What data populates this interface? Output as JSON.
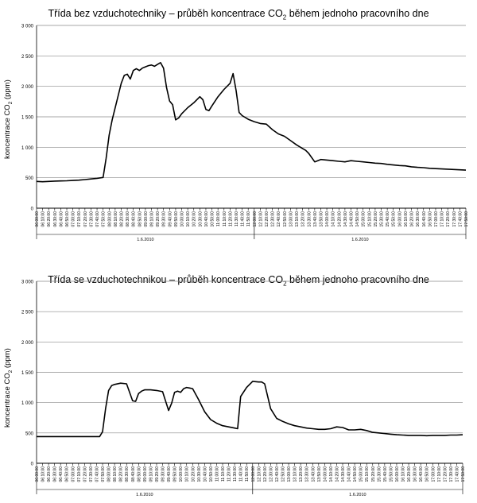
{
  "chart_data": [
    {
      "type": "line",
      "title_main": "Třída bez vzduchotechniky – průběh koncentrace CO",
      "title_sub": "2",
      "title_rest": " během jednoho pracovního dne",
      "ylabel_main": "koncentrace CO",
      "ylabel_sub": "2",
      "ylabel_rest": " (ppm)",
      "ylim": [
        0,
        3000
      ],
      "yticks": [
        "0",
        "500",
        "1 000",
        "1 500",
        "2 000",
        "2 500",
        "3 000"
      ],
      "grid": true,
      "xlim": [
        "06:00:00",
        "17:50:00"
      ],
      "xticks": [
        "06:00:00",
        "06:10:00",
        "06:20:00",
        "06:30:00",
        "06:40:00",
        "06:50:00",
        "07:00:00",
        "07:10:00",
        "07:20:00",
        "07:30:00",
        "07:40:00",
        "07:50:00",
        "08:00:00",
        "08:10:00",
        "08:20:00",
        "08:30:00",
        "08:40:00",
        "08:50:00",
        "09:00:00",
        "09:10:00",
        "09:20:00",
        "09:30:00",
        "09:40:00",
        "09:50:00",
        "10:00:00",
        "10:10:00",
        "10:20:00",
        "10:30:00",
        "10:40:00",
        "10:50:00",
        "11:00:00",
        "11:10:00",
        "11:20:00",
        "11:30:00",
        "11:40:00",
        "11:50:00",
        "12:00:00",
        "12:10:00",
        "12:20:00",
        "12:30:00",
        "12:40:00",
        "12:50:00",
        "13:00:00",
        "13:10:00",
        "13:20:00",
        "13:30:00",
        "13:40:00",
        "13:50:00",
        "14:00:00",
        "14:10:00",
        "14:20:00",
        "14:30:00",
        "14:40:00",
        "14:50:00",
        "15:00:00",
        "15:10:00",
        "15:20:00",
        "15:30:00",
        "15:40:00",
        "15:50:00",
        "16:00:00",
        "16:10:00",
        "16:20:00",
        "16:30:00",
        "16:40:00",
        "16:50:00",
        "17:00:00",
        "17:10:00",
        "17:20:00",
        "17:30:00",
        "17:40:00",
        "17:50:00"
      ],
      "date_groups": [
        {
          "label": "1.6.2010",
          "from": "06:00:00",
          "to": "12:00:00"
        },
        {
          "label": "1.6.2010",
          "from": "12:00:00",
          "to": "17:50:00"
        }
      ],
      "series": [
        {
          "x": [
            "06:00:00",
            "06:10:00",
            "06:20:00",
            "06:30:00",
            "06:40:00",
            "06:50:00",
            "07:00:00",
            "07:10:00",
            "07:20:00",
            "07:30:00",
            "07:40:00",
            "07:50:00",
            "07:55:00",
            "08:00:00",
            "08:05:00",
            "08:10:00",
            "08:15:00",
            "08:20:00",
            "08:25:00",
            "08:30:00",
            "08:35:00",
            "08:40:00",
            "08:45:00",
            "08:50:00",
            "08:55:00",
            "09:00:00",
            "09:05:00",
            "09:10:00",
            "09:15:00",
            "09:20:00",
            "09:25:00",
            "09:30:00",
            "09:35:00",
            "09:40:00",
            "09:45:00",
            "09:50:00",
            "09:55:00",
            "10:00:00",
            "10:10:00",
            "10:20:00",
            "10:30:00",
            "10:35:00",
            "10:40:00",
            "10:45:00",
            "10:50:00",
            "11:00:00",
            "11:10:00",
            "11:20:00",
            "11:25:00",
            "11:30:00",
            "11:35:00",
            "11:40:00",
            "11:50:00",
            "12:00:00",
            "12:10:00",
            "12:20:00",
            "12:30:00",
            "12:40:00",
            "12:50:00",
            "13:00:00",
            "13:10:00",
            "13:20:00",
            "13:25:00",
            "13:30:00",
            "13:40:00",
            "13:50:00",
            "14:00:00",
            "14:10:00",
            "14:20:00",
            "14:30:00",
            "14:40:00",
            "14:50:00",
            "15:00:00",
            "15:10:00",
            "15:20:00",
            "15:30:00",
            "15:40:00",
            "15:50:00",
            "16:00:00",
            "16:10:00",
            "16:20:00",
            "16:30:00",
            "16:40:00",
            "16:50:00",
            "17:00:00",
            "17:10:00",
            "17:20:00",
            "17:30:00",
            "17:40:00",
            "17:50:00"
          ],
          "values": [
            440,
            435,
            440,
            445,
            448,
            450,
            455,
            460,
            470,
            480,
            490,
            505,
            820,
            1200,
            1450,
            1650,
            1850,
            2050,
            2180,
            2200,
            2120,
            2260,
            2290,
            2260,
            2300,
            2320,
            2340,
            2350,
            2330,
            2360,
            2390,
            2300,
            1980,
            1760,
            1700,
            1450,
            1480,
            1550,
            1650,
            1730,
            1830,
            1780,
            1620,
            1600,
            1680,
            1830,
            1950,
            2050,
            2210,
            1930,
            1570,
            1520,
            1460,
            1420,
            1390,
            1380,
            1290,
            1220,
            1180,
            1110,
            1040,
            980,
            950,
            900,
            760,
            800,
            790,
            780,
            770,
            760,
            780,
            770,
            760,
            750,
            740,
            735,
            720,
            710,
            700,
            695,
            680,
            670,
            665,
            655,
            650,
            645,
            640,
            635,
            630,
            625
          ]
        }
      ]
    },
    {
      "type": "line",
      "title_main": "Třída se vzduchotechnikou – průběh koncentrace CO",
      "title_sub": "2",
      "title_rest": " během jednoho pracovního dne",
      "ylabel_main": "koncentrace CO",
      "ylabel_sub": "2",
      "ylabel_rest": " (ppm)",
      "ylim": [
        0,
        3000
      ],
      "yticks": [
        "0",
        "500",
        "1 000",
        "1 500",
        "2 000",
        "2 500",
        "3 000"
      ],
      "grid": true,
      "xlim": [
        "06:00:00",
        "17:50:00"
      ],
      "xticks": [
        "06:00:00",
        "06:10:00",
        "06:20:00",
        "06:30:00",
        "06:40:00",
        "06:50:00",
        "07:00:00",
        "07:10:00",
        "07:20:00",
        "07:30:00",
        "07:40:00",
        "07:50:00",
        "08:00:00",
        "08:10:00",
        "08:20:00",
        "08:30:00",
        "08:40:00",
        "08:50:00",
        "09:00:00",
        "09:10:00",
        "09:20:00",
        "09:30:00",
        "09:40:00",
        "09:50:00",
        "10:00:00",
        "10:10:00",
        "10:20:00",
        "10:30:00",
        "10:40:00",
        "10:50:00",
        "11:00:00",
        "11:10:00",
        "11:20:00",
        "11:30:00",
        "11:40:00",
        "11:50:00",
        "12:00:00",
        "12:10:00",
        "12:20:00",
        "12:30:00",
        "12:40:00",
        "12:50:00",
        "13:00:00",
        "13:10:00",
        "13:20:00",
        "13:30:00",
        "13:40:00",
        "13:50:00",
        "14:00:00",
        "14:10:00",
        "14:20:00",
        "14:30:00",
        "14:40:00",
        "14:50:00",
        "15:00:00",
        "15:10:00",
        "15:20:00",
        "15:30:00",
        "15:40:00",
        "15:50:00",
        "16:00:00",
        "16:10:00",
        "16:20:00",
        "16:30:00",
        "16:40:00",
        "16:50:00",
        "17:00:00",
        "17:10:00",
        "17:20:00",
        "17:30:00",
        "17:40:00",
        "17:50:00"
      ],
      "date_groups": [
        {
          "label": "1.6.2010",
          "from": "06:00:00",
          "to": "12:00:00"
        },
        {
          "label": "1.6.2010",
          "from": "12:00:00",
          "to": "17:50:00"
        }
      ],
      "series": [
        {
          "x": [
            "06:00:00",
            "06:30:00",
            "07:00:00",
            "07:30:00",
            "07:45:00",
            "07:50:00",
            "07:55:00",
            "08:00:00",
            "08:05:00",
            "08:10:00",
            "08:20:00",
            "08:30:00",
            "08:40:00",
            "08:45:00",
            "08:50:00",
            "08:55:00",
            "09:00:00",
            "09:10:00",
            "09:20:00",
            "09:30:00",
            "09:40:00",
            "09:45:00",
            "09:50:00",
            "09:55:00",
            "10:00:00",
            "10:05:00",
            "10:10:00",
            "10:15:00",
            "10:20:00",
            "10:30:00",
            "10:40:00",
            "10:50:00",
            "11:00:00",
            "11:10:00",
            "11:20:00",
            "11:30:00",
            "11:35:00",
            "11:40:00",
            "11:50:00",
            "12:00:00",
            "12:10:00",
            "12:15:00",
            "12:20:00",
            "12:30:00",
            "12:40:00",
            "12:50:00",
            "13:00:00",
            "13:10:00",
            "13:20:00",
            "13:30:00",
            "13:40:00",
            "13:50:00",
            "14:00:00",
            "14:10:00",
            "14:20:00",
            "14:30:00",
            "14:40:00",
            "14:50:00",
            "15:00:00",
            "15:10:00",
            "15:20:00",
            "15:30:00",
            "15:40:00",
            "15:50:00",
            "16:00:00",
            "16:10:00",
            "16:20:00",
            "16:30:00",
            "16:40:00",
            "16:50:00",
            "17:00:00",
            "17:10:00",
            "17:20:00",
            "17:30:00",
            "17:40:00",
            "17:50:00"
          ],
          "values": [
            440,
            440,
            440,
            440,
            440,
            520,
            900,
            1200,
            1280,
            1300,
            1320,
            1310,
            1030,
            1020,
            1150,
            1190,
            1210,
            1210,
            1200,
            1180,
            870,
            990,
            1170,
            1190,
            1170,
            1230,
            1250,
            1240,
            1230,
            1050,
            850,
            720,
            660,
            620,
            600,
            580,
            570,
            1100,
            1250,
            1350,
            1340,
            1340,
            1310,
            900,
            740,
            690,
            650,
            620,
            600,
            580,
            570,
            560,
            560,
            570,
            600,
            590,
            550,
            550,
            560,
            540,
            510,
            500,
            490,
            480,
            470,
            465,
            460,
            460,
            460,
            455,
            460,
            460,
            460,
            465,
            465,
            470
          ]
        }
      ]
    }
  ]
}
